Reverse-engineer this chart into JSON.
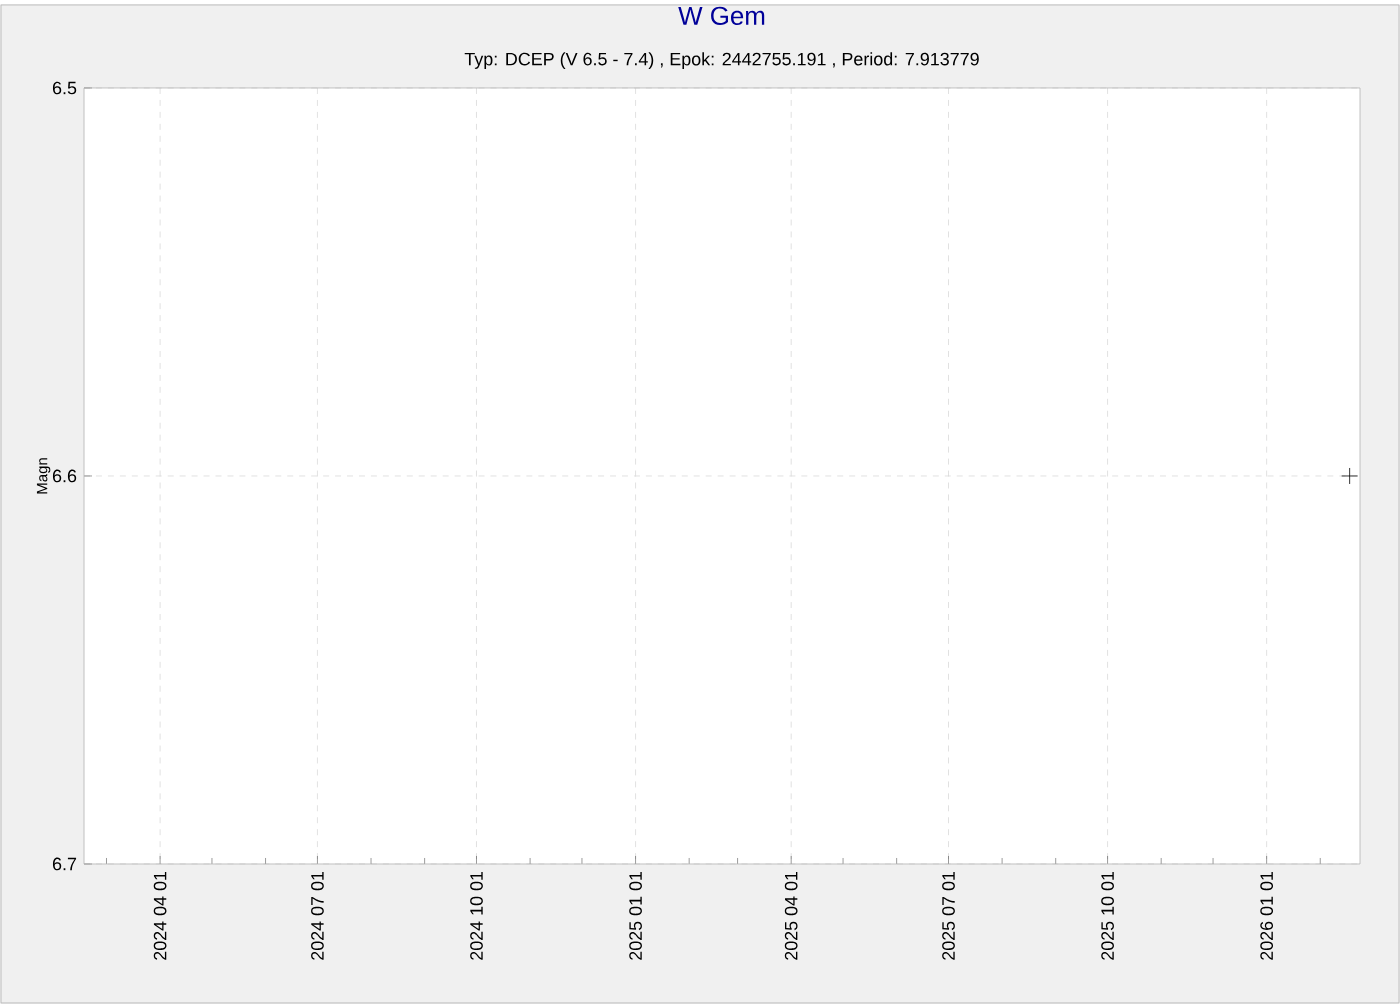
{
  "chart_data": {
    "type": "scatter",
    "title": "W Gem",
    "subtitle": "Typ: DCEP (V 6.5 - 7.4) , Epok: 2442755.191 , Period: 7.913779",
    "ylabel": "Magn",
    "x": [
      "2026-02-18"
    ],
    "values": [
      6.6
    ],
    "color": "#000000",
    "marker": "cross",
    "xlim": [
      "2024-02-17",
      "2026-02-24"
    ],
    "ylim": [
      6.7,
      6.5
    ],
    "yticks": [
      6.5,
      6.6,
      6.7
    ],
    "xticks": [
      {
        "value": "2024-03-01",
        "label": null
      },
      {
        "value": "2024-04-01",
        "label": "2024 04 01"
      },
      {
        "value": "2024-05-01",
        "label": null
      },
      {
        "value": "2024-06-01",
        "label": null
      },
      {
        "value": "2024-07-01",
        "label": "2024 07 01"
      },
      {
        "value": "2024-08-01",
        "label": null
      },
      {
        "value": "2024-09-01",
        "label": null
      },
      {
        "value": "2024-10-01",
        "label": "2024 10 01"
      },
      {
        "value": "2024-11-01",
        "label": null
      },
      {
        "value": "2024-12-01",
        "label": null
      },
      {
        "value": "2025-01-01",
        "label": "2025 01 01"
      },
      {
        "value": "2025-02-01",
        "label": null
      },
      {
        "value": "2025-03-01",
        "label": null
      },
      {
        "value": "2025-04-01",
        "label": "2025 04 01"
      },
      {
        "value": "2025-05-01",
        "label": null
      },
      {
        "value": "2025-06-01",
        "label": null
      },
      {
        "value": "2025-07-01",
        "label": "2025 07 01"
      },
      {
        "value": "2025-08-01",
        "label": null
      },
      {
        "value": "2025-09-01",
        "label": null
      },
      {
        "value": "2025-10-01",
        "label": "2025 10 01"
      },
      {
        "value": "2025-11-01",
        "label": null
      },
      {
        "value": "2025-12-01",
        "label": null
      },
      {
        "value": "2026-01-01",
        "label": "2026 01 01"
      },
      {
        "value": "2026-02-01",
        "label": null
      }
    ],
    "grid": true
  }
}
